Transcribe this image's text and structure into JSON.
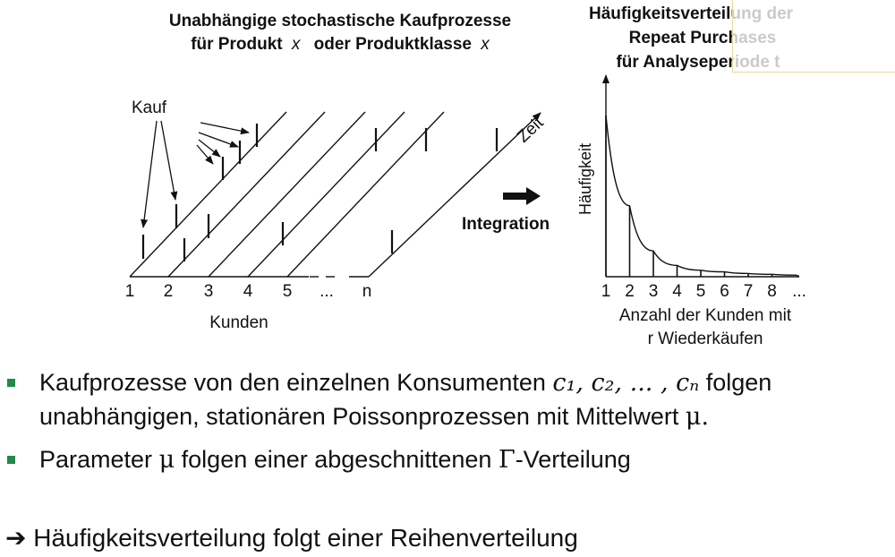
{
  "left_diagram": {
    "title_line1": "Unabhängige stochastische Kaufprozesse",
    "title_line2_a": "für Produkt",
    "title_line2_var1": "x",
    "title_line2_b": "oder Produktklasse",
    "title_line2_var2": "x",
    "kauf_label": "Kauf",
    "zeit_label": "Zeit",
    "customer_labels": [
      "1",
      "2",
      "3",
      "4",
      "5",
      "...",
      "n"
    ],
    "x_label": "Kunden"
  },
  "integration_label": "Integration",
  "right_chart": {
    "title_line1": "Häufigkeitsverteilung der",
    "title_line2": "Repeat Purchases",
    "title_line3": "für Analyseperiode t",
    "ylabel": "Häufigkeit",
    "xlabel_line1": "Anzahl der Kunden mit",
    "xlabel_line2": "r Wiederkäufen"
  },
  "chart_data": {
    "type": "bar",
    "categories": [
      "1",
      "2",
      "3",
      "4",
      "5",
      "6",
      "7",
      "8",
      "..."
    ],
    "values": [
      100,
      44,
      16,
      7,
      4,
      3,
      2,
      1.5,
      1
    ],
    "ylabel": "Häufigkeit",
    "xlabel": "Anzahl der Kunden mit r Wiederkäufen",
    "ylim": [
      0,
      110
    ],
    "grid": false
  },
  "bullets": {
    "b1_text_a": "Kaufprozesse von den einzelnen Konsumenten",
    "b1_math": "c₁, c₂, ... , cₙ",
    "b1_text_b": "folgen",
    "b1_line2_a": "unabhängigen, stationären Poissonprozessen mit Mittelwert",
    "b1_mu": "μ.",
    "b2_text_a": "Parameter",
    "b2_mu": "μ",
    "b2_text_b": "folgen einer abgeschnittenen",
    "b2_gamma": "Γ",
    "b2_text_c": "-Verteilung",
    "conclusion_arrow": "➔",
    "conclusion_text": "Häufigkeitsverteilung folgt einer Reihenverteilung"
  },
  "colors": {
    "bullet": "#1f8a4c",
    "ink": "#111111",
    "overlay_border": "#e8d9a0"
  }
}
